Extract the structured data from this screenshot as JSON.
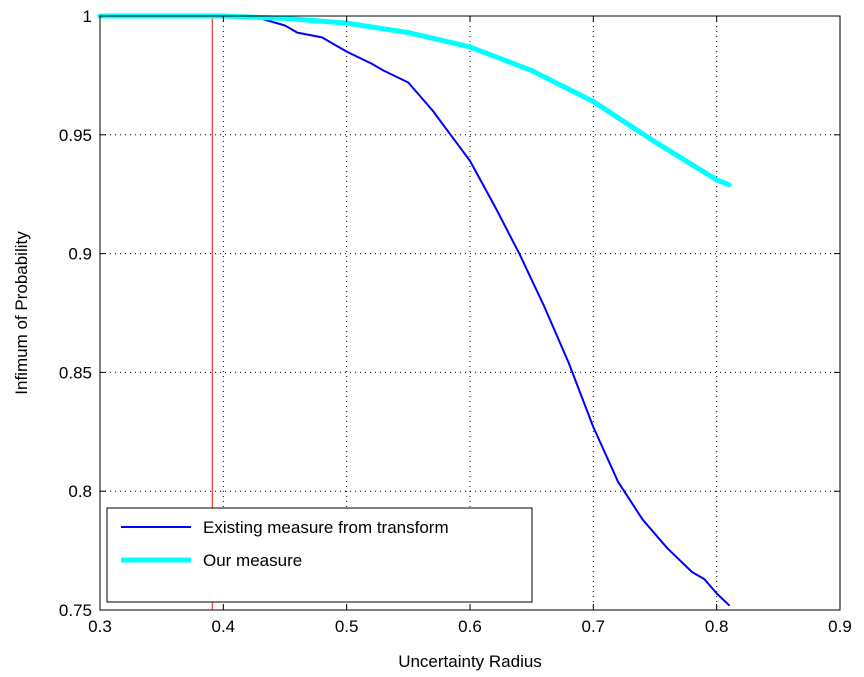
{
  "chart_data": {
    "type": "line",
    "xlabel": "Uncertainty Radius",
    "ylabel": "Infimum of Probability",
    "xlim": [
      0.3,
      0.9
    ],
    "ylim": [
      0.75,
      1.0
    ],
    "xticks": [
      0.3,
      0.4,
      0.5,
      0.6,
      0.7,
      0.8,
      0.9
    ],
    "xtick_labels": [
      "0.3",
      "0.4",
      "0.5",
      "0.6",
      "0.7",
      "0.8",
      "0.9"
    ],
    "yticks": [
      0.75,
      0.8,
      0.85,
      0.9,
      0.95,
      1.0
    ],
    "ytick_labels": [
      "0.75",
      "0.8",
      "0.85",
      "0.9",
      "0.95",
      "1"
    ],
    "grid": true,
    "legend_position": "bottom-left",
    "vertical_line": {
      "x": 0.391,
      "color": "#ff0000"
    },
    "series": [
      {
        "name": "Existing measure from transform",
        "color": "#0000ff",
        "x": [
          0.3,
          0.35,
          0.4,
          0.42,
          0.43,
          0.45,
          0.46,
          0.48,
          0.5,
          0.52,
          0.53,
          0.55,
          0.57,
          0.58,
          0.6,
          0.62,
          0.64,
          0.66,
          0.68,
          0.7,
          0.72,
          0.74,
          0.76,
          0.78,
          0.79,
          0.8,
          0.81
        ],
        "y": [
          1.0,
          1.0,
          1.0,
          1.0,
          0.999,
          0.996,
          0.993,
          0.991,
          0.985,
          0.98,
          0.977,
          0.972,
          0.96,
          0.953,
          0.939,
          0.92,
          0.9,
          0.878,
          0.854,
          0.827,
          0.804,
          0.788,
          0.776,
          0.766,
          0.763,
          0.757,
          0.752
        ]
      },
      {
        "name": "Our measure",
        "color": "#00ffff",
        "x": [
          0.3,
          0.35,
          0.4,
          0.45,
          0.5,
          0.55,
          0.6,
          0.65,
          0.7,
          0.75,
          0.8,
          0.81
        ],
        "y": [
          1.0,
          1.0,
          1.0,
          0.999,
          0.997,
          0.993,
          0.987,
          0.977,
          0.964,
          0.947,
          0.931,
          0.929
        ]
      }
    ]
  }
}
